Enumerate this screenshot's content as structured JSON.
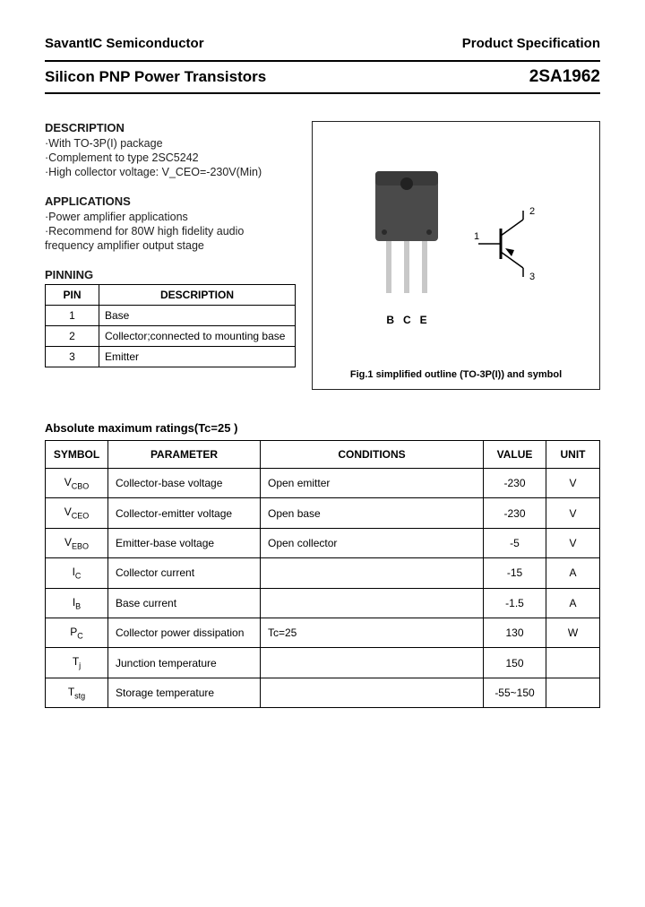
{
  "header": {
    "company": "SavantIC Semiconductor",
    "spec": "Product Specification",
    "title": "Silicon PNP Power Transistors",
    "part_number": "2SA1962"
  },
  "description": {
    "heading": "DESCRIPTION",
    "items": [
      "·With TO-3P(I) package",
      "·Complement to type 2SC5242",
      "·High collector voltage: V_CEO=-230V(Min)"
    ]
  },
  "applications": {
    "heading": "APPLICATIONS",
    "items": [
      "·Power amplifier applications",
      "·Recommend for 80W high fidelity audio",
      "  frequency amplifier output stage"
    ]
  },
  "pinning": {
    "heading": "PINNING",
    "col_pin": "PIN",
    "col_desc": "DESCRIPTION",
    "rows": [
      {
        "pin": "1",
        "desc": "Base"
      },
      {
        "pin": "2",
        "desc": "Collector;connected to mounting base"
      },
      {
        "pin": "3",
        "desc": "Emitter"
      }
    ]
  },
  "figure": {
    "pin_labels": [
      "B",
      "C",
      "E"
    ],
    "symbol_labels": {
      "base": "1",
      "collector": "2",
      "emitter": "3"
    },
    "caption": "Fig.1 simplified outline (TO-3P(I)) and symbol",
    "package": {
      "body_color": "#4a4a4a",
      "lead_color": "#c8c8c8",
      "body_width": 70,
      "body_height": 85,
      "lead_length": 60
    }
  },
  "ratings": {
    "heading": "Absolute maximum ratings(Tc=25 )",
    "columns": [
      "SYMBOL",
      "PARAMETER",
      "CONDITIONS",
      "VALUE",
      "UNIT"
    ],
    "rows": [
      {
        "symbol": "V_CBO",
        "parameter": "Collector-base voltage",
        "conditions": "Open emitter",
        "value": "-230",
        "unit": "V"
      },
      {
        "symbol": "V_CEO",
        "parameter": "Collector-emitter voltage",
        "conditions": "Open base",
        "value": "-230",
        "unit": "V"
      },
      {
        "symbol": "V_EBO",
        "parameter": "Emitter-base voltage",
        "conditions": "Open collector",
        "value": "-5",
        "unit": "V"
      },
      {
        "symbol": "I_C",
        "parameter": "Collector current",
        "conditions": "",
        "value": "-15",
        "unit": "A"
      },
      {
        "symbol": "I_B",
        "parameter": "Base current",
        "conditions": "",
        "value": "-1.5",
        "unit": "A"
      },
      {
        "symbol": "P_C",
        "parameter": "Collector power dissipation",
        "conditions": "Tc=25 ",
        "value": "130",
        "unit": "W"
      },
      {
        "symbol": "T_j",
        "parameter": "Junction temperature",
        "conditions": "",
        "value": "150",
        "unit": ""
      },
      {
        "symbol": "T_stg",
        "parameter": "Storage temperature",
        "conditions": "",
        "value": "-55~150",
        "unit": ""
      }
    ]
  }
}
